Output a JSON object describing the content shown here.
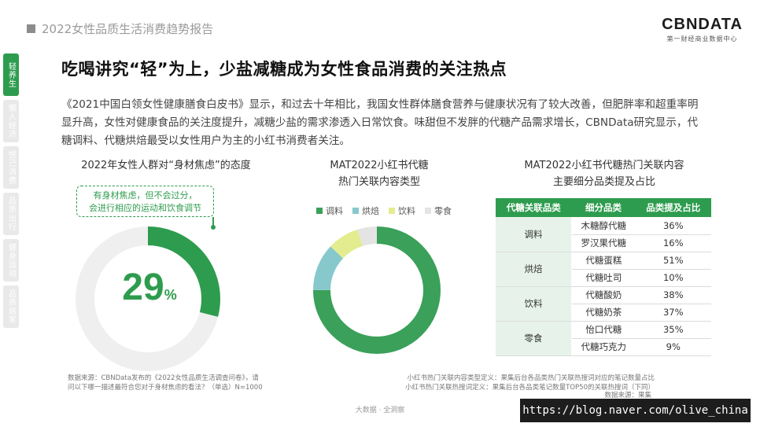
{
  "header": {
    "report_title": "2022女性品质生活消费趋势报告",
    "brand_logo": "CBNDATA",
    "brand_sub": "第一财经商业数据中心"
  },
  "side_nav": {
    "items": [
      {
        "label": "轻养生",
        "active": true
      },
      {
        "label": "懒人经济",
        "active": false
      },
      {
        "label": "悦己消费",
        "active": false
      },
      {
        "label": "品质出行",
        "active": false
      },
      {
        "label": "健身运动",
        "active": false
      },
      {
        "label": "品质居家",
        "active": false
      }
    ]
  },
  "headline": "吃喝讲究“轻”为上，少盐减糖成为女性食品消费的关注热点",
  "intro": "《2021中国白领女性健康膳食白皮书》显示，和过去十年相比，我国女性群体膳食营养与健康状况有了较大改善，但肥胖率和超重率明显升高，女性对健康食品的关注度提升，减糖少盐的需求渗透入日常饮食。味甜但不发胖的代糖产品需求增长，CBNData研究显示，代糖调料、代糖烘焙最受以女性用户为主的小红书消费者关注。",
  "chart_data": [
    {
      "type": "pie",
      "title": "2022年女性人群对“身材焦虑”的态度",
      "callout_line1": "有身材焦虑，但不会过分，",
      "callout_line2": "会进行相应的运动和饮食调节",
      "value": 29,
      "value_text": "29",
      "unit": "%",
      "colors": {
        "value": "#2e9c4e",
        "rest": "#efefef"
      }
    },
    {
      "type": "pie",
      "title_line1": "MAT2022小红书代糖",
      "title_line2": "热门关联内容类型",
      "categories": [
        "调料",
        "烘焙",
        "饮料",
        "零食"
      ],
      "values": [
        75,
        12,
        8,
        5
      ],
      "colors": [
        "#3aa05a",
        "#86c8cc",
        "#e3ed8f",
        "#e4e4e4"
      ]
    },
    {
      "type": "table",
      "title_line1": "MAT2022小红书代糖热门关联内容",
      "title_line2": "主要细分品类提及占比",
      "columns": [
        "代糖关联品类",
        "细分品类",
        "品类提及占比"
      ],
      "groups": [
        {
          "category": "调料",
          "rows": [
            {
              "sub": "木糖醇代糖",
              "share": "36%"
            },
            {
              "sub": "罗汉果代糖",
              "share": "16%"
            }
          ]
        },
        {
          "category": "烘焙",
          "rows": [
            {
              "sub": "代糖蛋糕",
              "share": "51%"
            },
            {
              "sub": "代糖吐司",
              "share": "10%"
            }
          ]
        },
        {
          "category": "饮料",
          "rows": [
            {
              "sub": "代糖酸奶",
              "share": "38%"
            },
            {
              "sub": "代糖奶茶",
              "share": "37%"
            }
          ]
        },
        {
          "category": "零食",
          "rows": [
            {
              "sub": "怡口代糖",
              "share": "35%"
            },
            {
              "sub": "代糖巧克力",
              "share": "9%"
            }
          ]
        }
      ]
    }
  ],
  "notes": {
    "left": "数据来源：CBNData发布的《2022女性品质生活调查问卷》，请问以下哪一描述最符合您对于身材焦虑的看法？（单选）N=1000",
    "right_line1": "小红书热门关联内容类型定义：果集后台各品类热门关联热搜词对应的笔记数量占比",
    "right_line2": "小红书热门关联热搜词定义：果集后台各品类笔记数量TOP50的关联热搜词（下同）",
    "source": "数据来源：果集"
  },
  "footer": "大数据 · 全洞察",
  "watermark": "https://blog.naver.com/olive_china"
}
